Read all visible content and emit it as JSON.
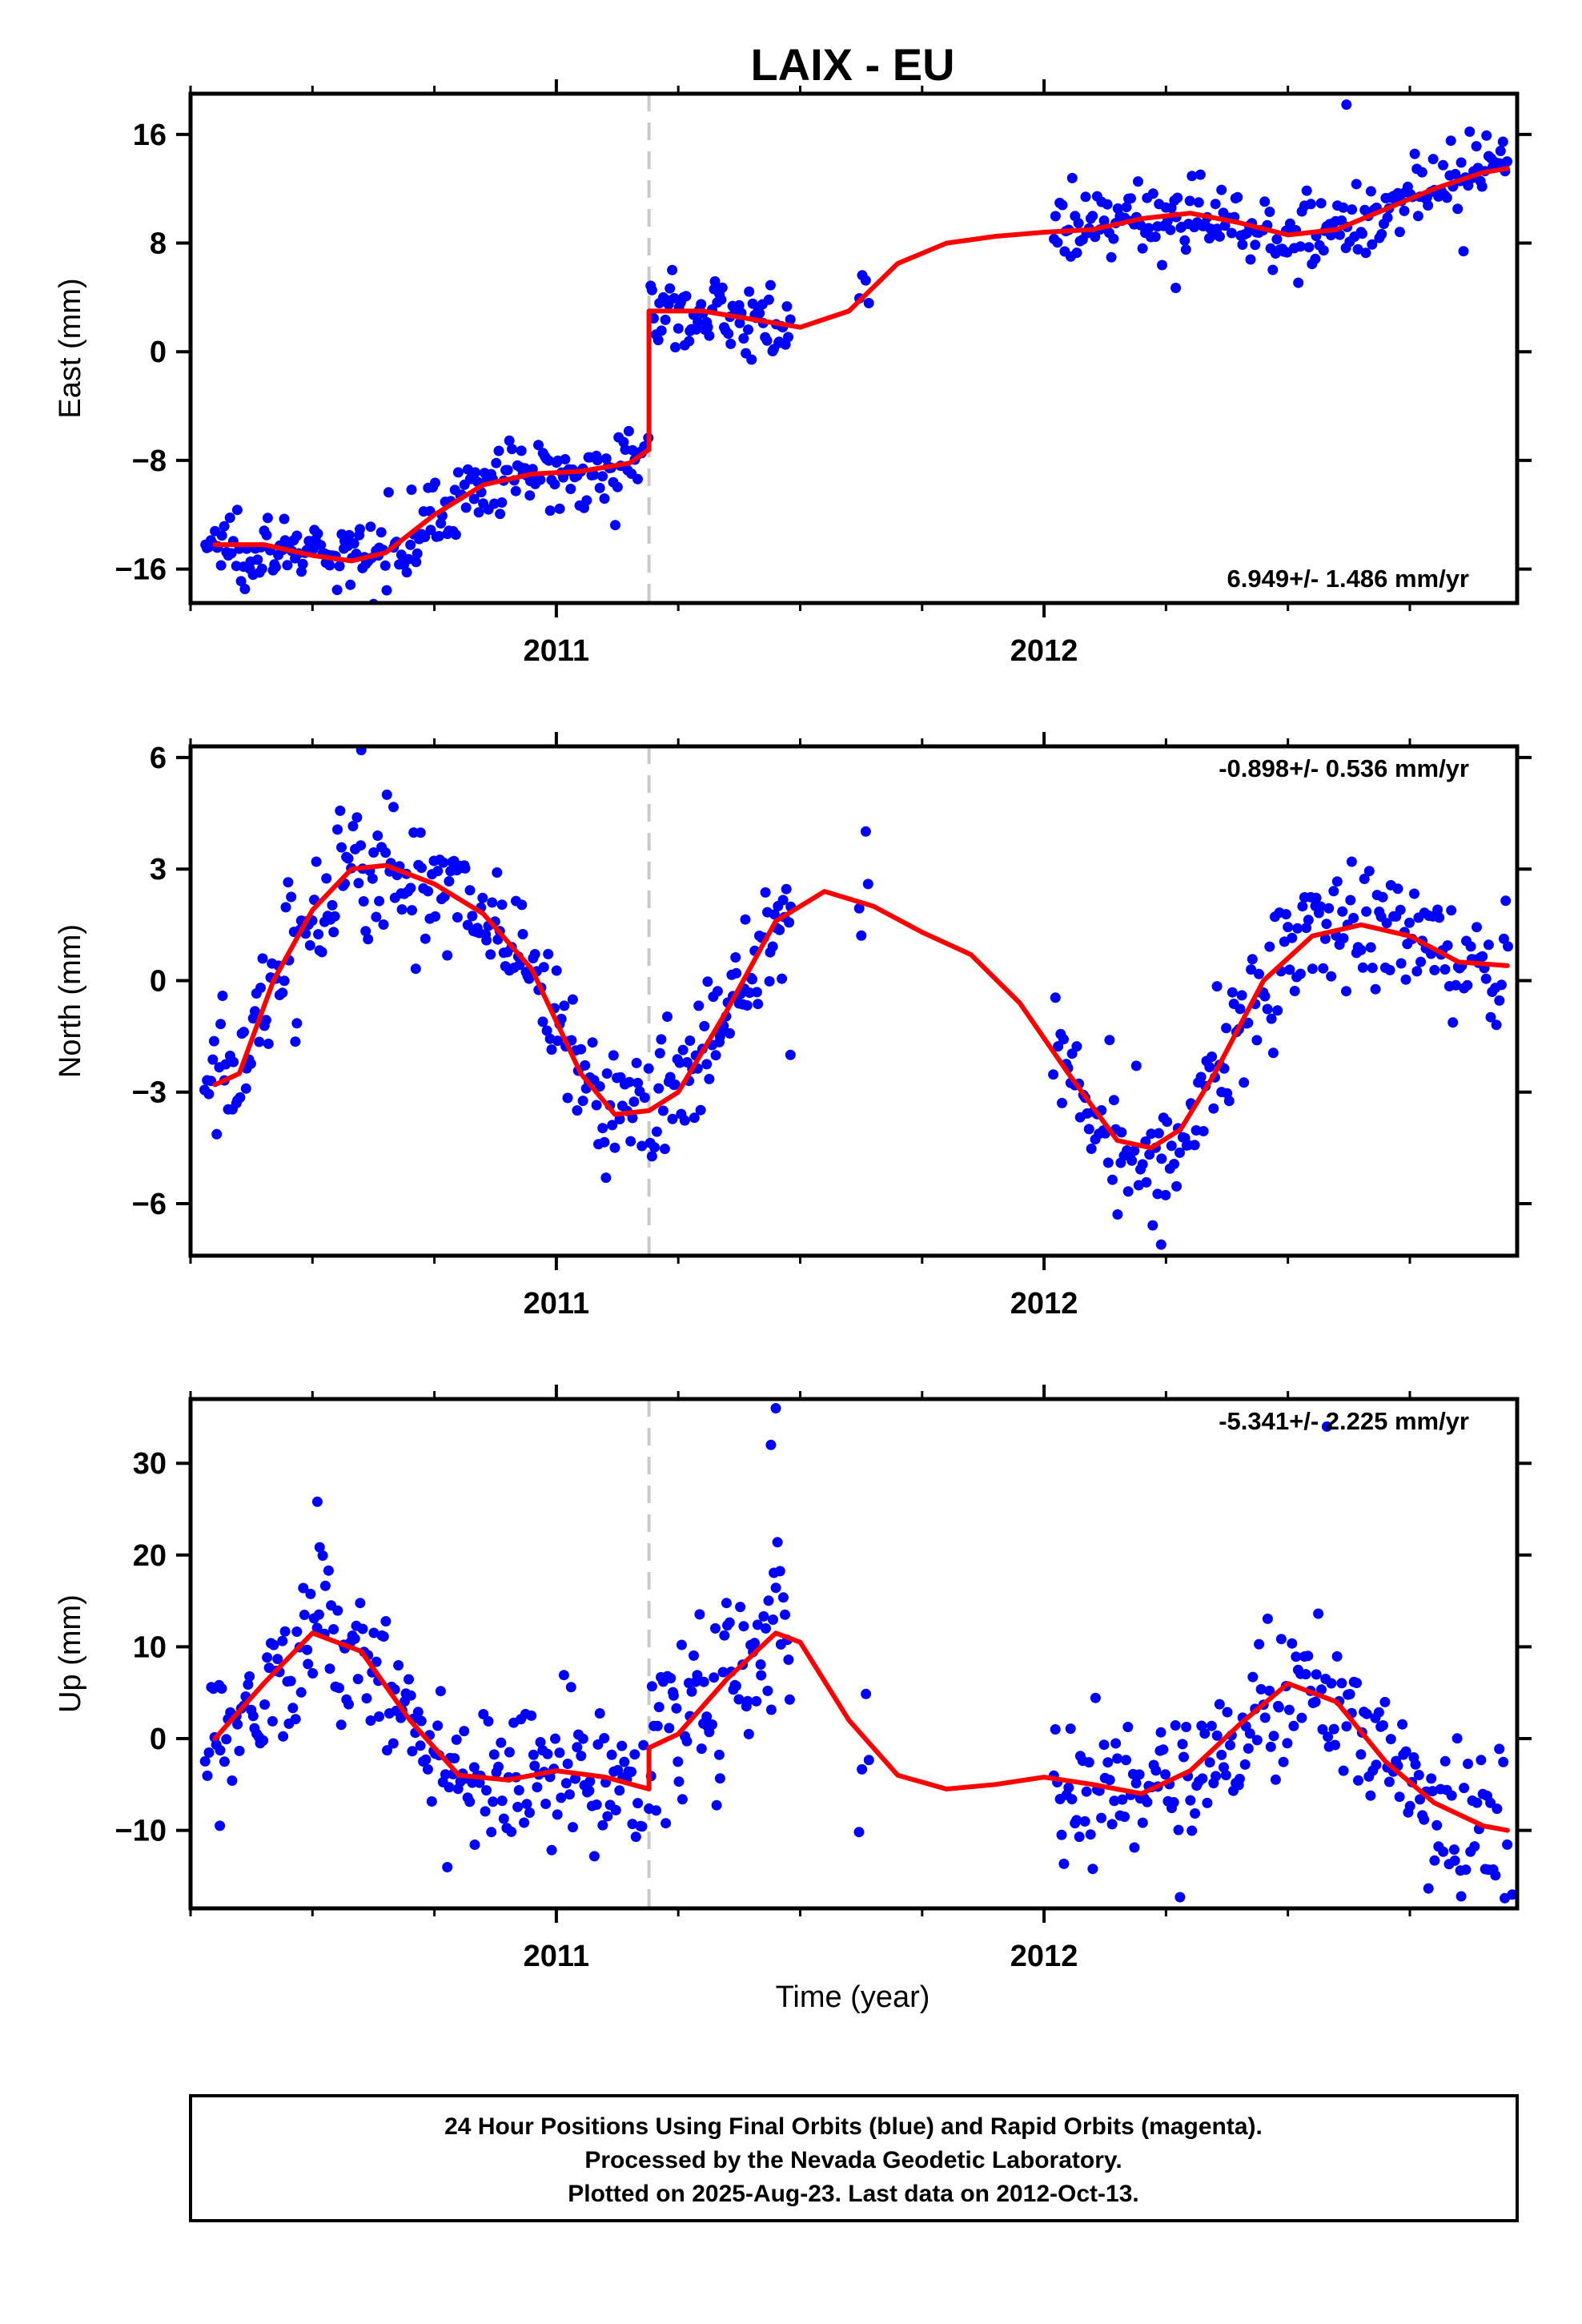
{
  "title": "LAIX - EU",
  "xlabel": "Time (year)",
  "x_tick_labels": [
    "2011",
    "2012"
  ],
  "colors": {
    "final": "#0000ff",
    "model": "#ff0000",
    "offset": "#c8c8c8",
    "frame": "#000000"
  },
  "footer": {
    "line1": "24 Hour Positions Using Final Orbits (blue) and Rapid Orbits (magenta).",
    "line2": "Processed by the Nevada Geodetic Laboratory.",
    "line3": "Plotted on 2025-Aug-23. Last data on 2012-Oct-13."
  },
  "chart_data": [
    {
      "type": "scatter",
      "panel": "east",
      "ylabel": "East (mm)",
      "rate": "6.949+/- 1.486 mm/yr",
      "rate_position": "bottom-right",
      "xlim": [
        2010.25,
        2012.97
      ],
      "ylim": [
        -18.5,
        19
      ],
      "yticks": [
        -16,
        -8,
        0,
        8,
        16
      ],
      "offset_epoch": 2011.19,
      "model_x": [
        2010.3,
        2010.4,
        2010.5,
        2010.58,
        2010.65,
        2010.75,
        2010.85,
        2010.95,
        2011.05,
        2011.15,
        2011.19,
        2011.19,
        2011.3,
        2011.4,
        2011.5,
        2011.6,
        2011.7,
        2011.8,
        2011.9,
        2012.0,
        2012.1,
        2012.2,
        2012.3,
        2012.4,
        2012.5,
        2012.6,
        2012.7,
        2012.8,
        2012.9,
        2012.95
      ],
      "model_y": [
        -14.2,
        -14.2,
        -15.0,
        -15.4,
        -14.8,
        -12.0,
        -9.8,
        -9.0,
        -8.8,
        -8.2,
        -7.2,
        3.0,
        3.0,
        2.4,
        1.8,
        3.0,
        6.5,
        8.0,
        8.5,
        8.8,
        9.0,
        9.8,
        10.2,
        9.5,
        8.6,
        9.0,
        10.5,
        12.0,
        13.2,
        13.5
      ],
      "observations": [
        {
          "x_start": 2010.28,
          "x_end": 2011.18,
          "n": 230,
          "scatter": 1.3
        },
        {
          "x_start": 2011.19,
          "x_end": 2011.48,
          "n": 80,
          "scatter": 1.3
        },
        {
          "x_start": 2011.62,
          "x_end": 2011.64,
          "n": 4,
          "scatter": 0.8
        },
        {
          "x_start": 2012.02,
          "x_end": 2012.95,
          "n": 220,
          "scatter": 1.3
        }
      ],
      "outliers": [
        [
          2012.62,
          18.2
        ],
        [
          2012.27,
          4.7
        ],
        [
          2012.86,
          7.4
        ]
      ]
    },
    {
      "type": "scatter",
      "panel": "north",
      "ylabel": "North (mm)",
      "rate": "-0.898+/- 0.536 mm/yr",
      "rate_position": "top-right",
      "xlim": [
        2010.25,
        2012.97
      ],
      "ylim": [
        -7.4,
        6.3
      ],
      "yticks": [
        -6,
        -3,
        0,
        3,
        6
      ],
      "offset_epoch": 2011.19,
      "model_x": [
        2010.3,
        2010.35,
        2010.42,
        2010.5,
        2010.58,
        2010.65,
        2010.75,
        2010.85,
        2010.95,
        2011.05,
        2011.12,
        2011.19,
        2011.25,
        2011.35,
        2011.45,
        2011.55,
        2011.65,
        2011.75,
        2011.85,
        2011.95,
        2012.05,
        2012.15,
        2012.22,
        2012.28,
        2012.35,
        2012.45,
        2012.55,
        2012.65,
        2012.75,
        2012.85,
        2012.95
      ],
      "model_y": [
        -2.8,
        -2.5,
        0.0,
        1.9,
        3.0,
        3.1,
        2.6,
        1.8,
        0.3,
        -2.5,
        -3.6,
        -3.5,
        -3.0,
        -0.8,
        1.6,
        2.4,
        2.0,
        1.3,
        0.7,
        -0.6,
        -2.5,
        -4.3,
        -4.5,
        -4.0,
        -2.5,
        0.0,
        1.2,
        1.5,
        1.2,
        0.5,
        0.4
      ],
      "observations": [
        {
          "x_start": 2010.28,
          "x_end": 2011.18,
          "n": 230,
          "scatter": 0.9
        },
        {
          "x_start": 2011.19,
          "x_end": 2011.48,
          "n": 80,
          "scatter": 1.0
        },
        {
          "x_start": 2011.62,
          "x_end": 2011.64,
          "n": 4,
          "scatter": 1.5
        },
        {
          "x_start": 2012.02,
          "x_end": 2012.95,
          "n": 220,
          "scatter": 0.9
        }
      ],
      "outliers": [
        [
          2010.6,
          6.2
        ],
        [
          2012.24,
          -7.1
        ],
        [
          2011.48,
          -2.0
        ]
      ]
    },
    {
      "type": "scatter",
      "panel": "up",
      "ylabel": "Up (mm)",
      "rate": "-5.341+/- 2.225 mm/yr",
      "rate_position": "top-right",
      "xlim": [
        2010.25,
        2012.97
      ],
      "ylim": [
        -18.5,
        37
      ],
      "yticks": [
        -10,
        0,
        10,
        20,
        30
      ],
      "offset_epoch": 2011.19,
      "model_x": [
        2010.3,
        2010.4,
        2010.5,
        2010.6,
        2010.7,
        2010.8,
        2010.9,
        2011.0,
        2011.1,
        2011.19,
        2011.19,
        2011.25,
        2011.35,
        2011.45,
        2011.5,
        2011.6,
        2011.7,
        2011.8,
        2011.9,
        2012.0,
        2012.1,
        2012.2,
        2012.3,
        2012.4,
        2012.5,
        2012.6,
        2012.7,
        2012.8,
        2012.9,
        2012.95
      ],
      "model_y": [
        0.0,
        6.0,
        11.5,
        9.5,
        2.0,
        -4.0,
        -4.5,
        -3.5,
        -4.2,
        -5.5,
        -1.0,
        0.5,
        6.5,
        11.5,
        10.5,
        2.0,
        -4.0,
        -5.5,
        -5.0,
        -4.2,
        -5.0,
        -6.0,
        -3.5,
        1.5,
        6.0,
        4.0,
        -2.5,
        -7.0,
        -9.5,
        -10.0
      ],
      "observations": [
        {
          "x_start": 2010.28,
          "x_end": 2011.18,
          "n": 230,
          "scatter": 4.0
        },
        {
          "x_start": 2011.19,
          "x_end": 2011.48,
          "n": 80,
          "scatter": 5.0
        },
        {
          "x_start": 2011.62,
          "x_end": 2011.64,
          "n": 4,
          "scatter": 4.0
        },
        {
          "x_start": 2012.02,
          "x_end": 2012.95,
          "n": 220,
          "scatter": 4.0
        }
      ],
      "outliers": [
        [
          2011.45,
          36.0
        ],
        [
          2011.44,
          32.0
        ],
        [
          2010.51,
          25.8
        ],
        [
          2012.58,
          34.0
        ],
        [
          2012.96,
          -17.0
        ],
        [
          2010.31,
          -9.5
        ]
      ]
    }
  ]
}
